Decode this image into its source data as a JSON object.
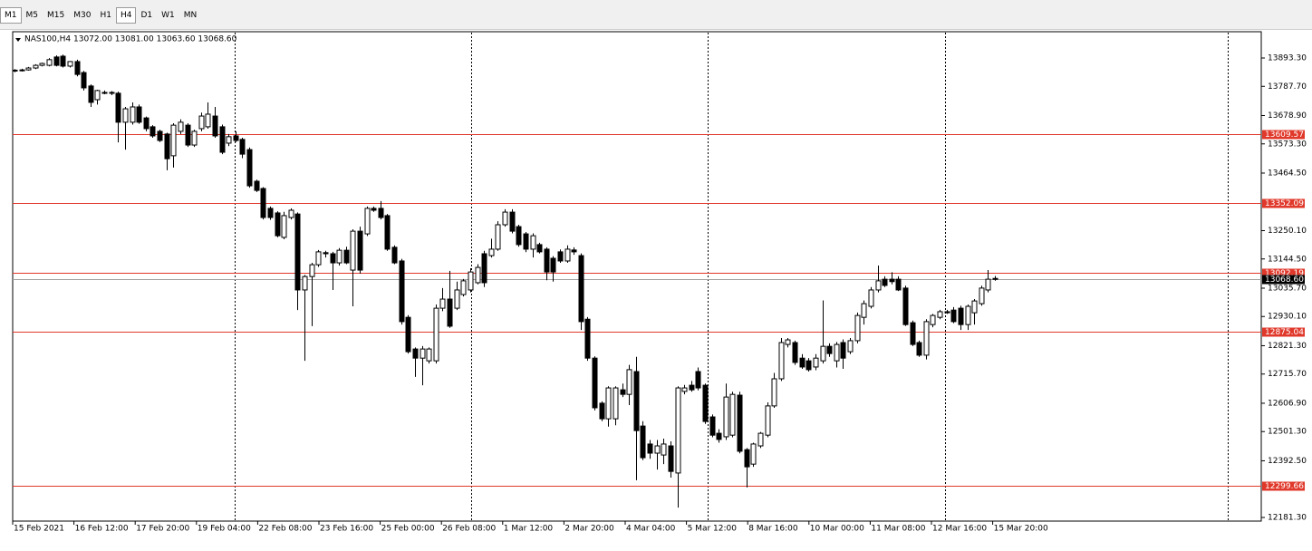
{
  "toolbar": {
    "timeframes": [
      "M1",
      "M5",
      "M15",
      "M30",
      "H1",
      "H4",
      "D1",
      "W1",
      "MN"
    ]
  },
  "chart_data": {
    "type": "candlestick",
    "title": "NAS100,H4  13072.00 13081.00 13063.60 13068.60",
    "up_color": "#ffffff",
    "down_color": "#000000",
    "ylim": [
      12167.8,
      13991.2
    ],
    "yticks": [
      {
        "value": 13893.3,
        "label": "13893.30"
      },
      {
        "value": 13787.7,
        "label": "13787.70"
      },
      {
        "value": 13678.9,
        "label": "13678.90"
      },
      {
        "value": 13573.3,
        "label": "13573.30"
      },
      {
        "value": 13464.5,
        "label": "13464.50"
      },
      {
        "value": 13250.1,
        "label": "13250.10"
      },
      {
        "value": 13144.5,
        "label": "13144.50"
      },
      {
        "value": 13035.7,
        "label": "13035.70"
      },
      {
        "value": 12930.1,
        "label": "12930.10"
      },
      {
        "value": 12821.3,
        "label": "12821.30"
      },
      {
        "value": 12715.7,
        "label": "12715.70"
      },
      {
        "value": 12606.9,
        "label": "12606.90"
      },
      {
        "value": 12501.3,
        "label": "12501.30"
      },
      {
        "value": 12392.5,
        "label": "12392.50"
      },
      {
        "value": 12181.3,
        "label": "12181.30"
      }
    ],
    "levels": [
      13609.57,
      13352.09,
      13092.19,
      12875.04,
      12299.66
    ],
    "level_color": "#e0392b",
    "current_price": {
      "value": 13068.6,
      "label": "13068.60"
    },
    "x_labels": [
      "15 Feb 2021",
      "16 Feb 12:00",
      "17 Feb 20:00",
      "19 Feb 04:00",
      "22 Feb 08:00",
      "23 Feb 16:00",
      "25 Feb 00:00",
      "26 Feb 08:00",
      "1 Mar 12:00",
      "2 Mar 20:00",
      "4 Mar 04:00",
      "5 Mar 12:00",
      "8 Mar 16:00",
      "10 Mar 00:00",
      "11 Mar 08:00",
      "12 Mar 16:00",
      "15 Mar 20:00"
    ],
    "ohlc": [
      [
        13846,
        13852,
        13840,
        13848
      ],
      [
        13848,
        13853,
        13843,
        13849
      ],
      [
        13849,
        13860,
        13846,
        13856
      ],
      [
        13856,
        13870,
        13852,
        13866
      ],
      [
        13866,
        13876,
        13862,
        13873
      ],
      [
        13866,
        13893,
        13862,
        13887
      ],
      [
        13897,
        13903,
        13862,
        13866
      ],
      [
        13900,
        13906,
        13858,
        13863
      ],
      [
        13863,
        13882,
        13858,
        13880
      ],
      [
        13880,
        13887,
        13825,
        13832
      ],
      [
        13839,
        13845,
        13772,
        13782
      ],
      [
        13789,
        13795,
        13711,
        13728
      ],
      [
        13738,
        13775,
        13720,
        13772
      ],
      [
        13765,
        13772,
        13758,
        13762
      ],
      [
        13762,
        13770,
        13755,
        13765
      ],
      [
        13762,
        13768,
        13579,
        13654
      ],
      [
        13654,
        13711,
        13552,
        13704
      ],
      [
        13654,
        13728,
        13645,
        13711
      ],
      [
        13711,
        13720,
        13648,
        13654
      ],
      [
        13670,
        13675,
        13620,
        13630
      ],
      [
        13637,
        13643,
        13596,
        13603
      ],
      [
        13620,
        13626,
        13580,
        13586
      ],
      [
        13610,
        13615,
        13475,
        13518
      ],
      [
        13529,
        13650,
        13485,
        13643
      ],
      [
        13620,
        13665,
        13610,
        13654
      ],
      [
        13643,
        13650,
        13562,
        13569
      ],
      [
        13569,
        13626,
        13562,
        13620
      ],
      [
        13630,
        13690,
        13620,
        13677
      ],
      [
        13637,
        13728,
        13630,
        13684
      ],
      [
        13677,
        13711,
        13596,
        13603
      ],
      [
        13637,
        13645,
        13535,
        13542
      ],
      [
        13576,
        13610,
        13565,
        13600
      ],
      [
        13603,
        13620,
        13580,
        13586
      ],
      [
        13590,
        13596,
        13520,
        13535
      ],
      [
        13552,
        13560,
        13410,
        13417
      ],
      [
        13434,
        13440,
        13394,
        13400
      ],
      [
        13407,
        13412,
        13292,
        13299
      ],
      [
        13333,
        13340,
        13290,
        13299
      ],
      [
        13316,
        13322,
        13225,
        13231
      ],
      [
        13225,
        13320,
        13218,
        13306
      ],
      [
        13299,
        13333,
        13292,
        13326
      ],
      [
        13312,
        13318,
        12954,
        13029
      ],
      [
        13029,
        13085,
        12765,
        13079
      ],
      [
        13079,
        13130,
        12894,
        13123
      ],
      [
        13123,
        13178,
        13115,
        13171
      ],
      [
        13168,
        13175,
        13150,
        13164
      ],
      [
        13164,
        13171,
        13029,
        13130
      ],
      [
        13130,
        13185,
        13120,
        13177
      ],
      [
        13177,
        13190,
        13125,
        13130
      ],
      [
        13103,
        13255,
        12968,
        13248
      ],
      [
        13248,
        13265,
        13090,
        13103
      ],
      [
        13238,
        13340,
        13230,
        13333
      ],
      [
        13333,
        13340,
        13320,
        13326
      ],
      [
        13333,
        13360,
        13292,
        13299
      ],
      [
        13306,
        13312,
        13175,
        13181
      ],
      [
        13188,
        13195,
        13125,
        13130
      ],
      [
        13137,
        13145,
        12900,
        12911
      ],
      [
        12927,
        12935,
        12792,
        12799
      ],
      [
        12809,
        12815,
        12705,
        12775
      ],
      [
        12775,
        12820,
        12674,
        12809
      ],
      [
        12765,
        12815,
        12755,
        12809
      ],
      [
        12765,
        12975,
        12755,
        12961
      ],
      [
        12961,
        13036,
        12950,
        12995
      ],
      [
        12995,
        13100,
        12888,
        12894
      ],
      [
        12961,
        13060,
        12954,
        13029
      ],
      [
        13012,
        13070,
        13005,
        13063
      ],
      [
        13029,
        13110,
        13020,
        13096
      ],
      [
        13056,
        13125,
        13050,
        13113
      ],
      [
        13164,
        13175,
        13040,
        13056
      ],
      [
        13157,
        13220,
        13150,
        13181
      ],
      [
        13181,
        13285,
        13175,
        13272
      ],
      [
        13272,
        13330,
        13265,
        13319
      ],
      [
        13319,
        13330,
        13240,
        13248
      ],
      [
        13265,
        13272,
        13190,
        13198
      ],
      [
        13238,
        13245,
        13170,
        13181
      ],
      [
        13181,
        13240,
        13150,
        13231
      ],
      [
        13198,
        13205,
        13165,
        13171
      ],
      [
        13181,
        13188,
        13065,
        13096
      ],
      [
        13147,
        13155,
        13060,
        13096
      ],
      [
        13171,
        13180,
        13130,
        13137
      ],
      [
        13137,
        13195,
        13130,
        13181
      ],
      [
        13178,
        13188,
        13160,
        13171
      ],
      [
        13157,
        13165,
        12880,
        12911
      ],
      [
        12920,
        12928,
        12765,
        12775
      ],
      [
        12775,
        12782,
        12580,
        12590
      ],
      [
        12607,
        12614,
        12540,
        12549
      ],
      [
        12549,
        12670,
        12520,
        12664
      ],
      [
        12549,
        12670,
        12525,
        12664
      ],
      [
        12657,
        12680,
        12630,
        12640
      ],
      [
        12640,
        12750,
        12600,
        12732
      ],
      [
        12725,
        12780,
        12320,
        12505
      ],
      [
        12522,
        12540,
        12395,
        12404
      ],
      [
        12455,
        12470,
        12400,
        12421
      ],
      [
        12421,
        12470,
        12360,
        12448
      ],
      [
        12414,
        12475,
        12380,
        12455
      ],
      [
        12448,
        12465,
        12330,
        12353
      ],
      [
        12347,
        12670,
        12218,
        12664
      ],
      [
        12651,
        12675,
        12640,
        12664
      ],
      [
        12674,
        12690,
        12650,
        12657
      ],
      [
        12725,
        12740,
        12655,
        12664
      ],
      [
        12674,
        12680,
        12530,
        12539
      ],
      [
        12556,
        12565,
        12480,
        12488
      ],
      [
        12495,
        12510,
        12460,
        12472
      ],
      [
        12482,
        12680,
        12470,
        12630
      ],
      [
        12488,
        12650,
        12480,
        12640
      ],
      [
        12637,
        12650,
        12420,
        12428
      ],
      [
        12434,
        12440,
        12293,
        12370
      ],
      [
        12380,
        12460,
        12370,
        12455
      ],
      [
        12448,
        12500,
        12440,
        12495
      ],
      [
        12488,
        12610,
        12480,
        12597
      ],
      [
        12597,
        12720,
        12590,
        12698
      ],
      [
        12698,
        12850,
        12690,
        12833
      ],
      [
        12826,
        12850,
        12815,
        12843
      ],
      [
        12833,
        12840,
        12750,
        12759
      ],
      [
        12775,
        12790,
        12735,
        12742
      ],
      [
        12765,
        12775,
        12725,
        12732
      ],
      [
        12742,
        12790,
        12730,
        12775
      ],
      [
        12765,
        12990,
        12755,
        12819
      ],
      [
        12819,
        12830,
        12780,
        12792
      ],
      [
        12765,
        12835,
        12740,
        12826
      ],
      [
        12833,
        12845,
        12735,
        12775
      ],
      [
        12799,
        12850,
        12790,
        12840
      ],
      [
        12840,
        12945,
        12830,
        12934
      ],
      [
        12927,
        12990,
        12900,
        12978
      ],
      [
        12968,
        13040,
        12960,
        13029
      ],
      [
        13029,
        13120,
        13020,
        13063
      ],
      [
        13069,
        13080,
        13040,
        13046
      ],
      [
        13069,
        13095,
        13050,
        13060
      ],
      [
        13069,
        13080,
        13025,
        13029
      ],
      [
        13036,
        13045,
        12895,
        12900
      ],
      [
        12907,
        12915,
        12820,
        12826
      ],
      [
        12833,
        12840,
        12780,
        12786
      ],
      [
        12786,
        12920,
        12770,
        12911
      ],
      [
        12900,
        12940,
        12890,
        12934
      ],
      [
        12927,
        12955,
        12920,
        12948
      ],
      [
        12948,
        12955,
        12940,
        12944
      ],
      [
        12954,
        12965,
        12905,
        12911
      ],
      [
        12961,
        12970,
        12880,
        12900
      ],
      [
        12900,
        12975,
        12880,
        12968
      ],
      [
        12944,
        12995,
        12900,
        12988
      ],
      [
        12978,
        13045,
        12970,
        13036
      ],
      [
        13029,
        13103,
        13020,
        13069
      ],
      [
        13072,
        13081,
        13063.6,
        13068.6
      ]
    ]
  }
}
